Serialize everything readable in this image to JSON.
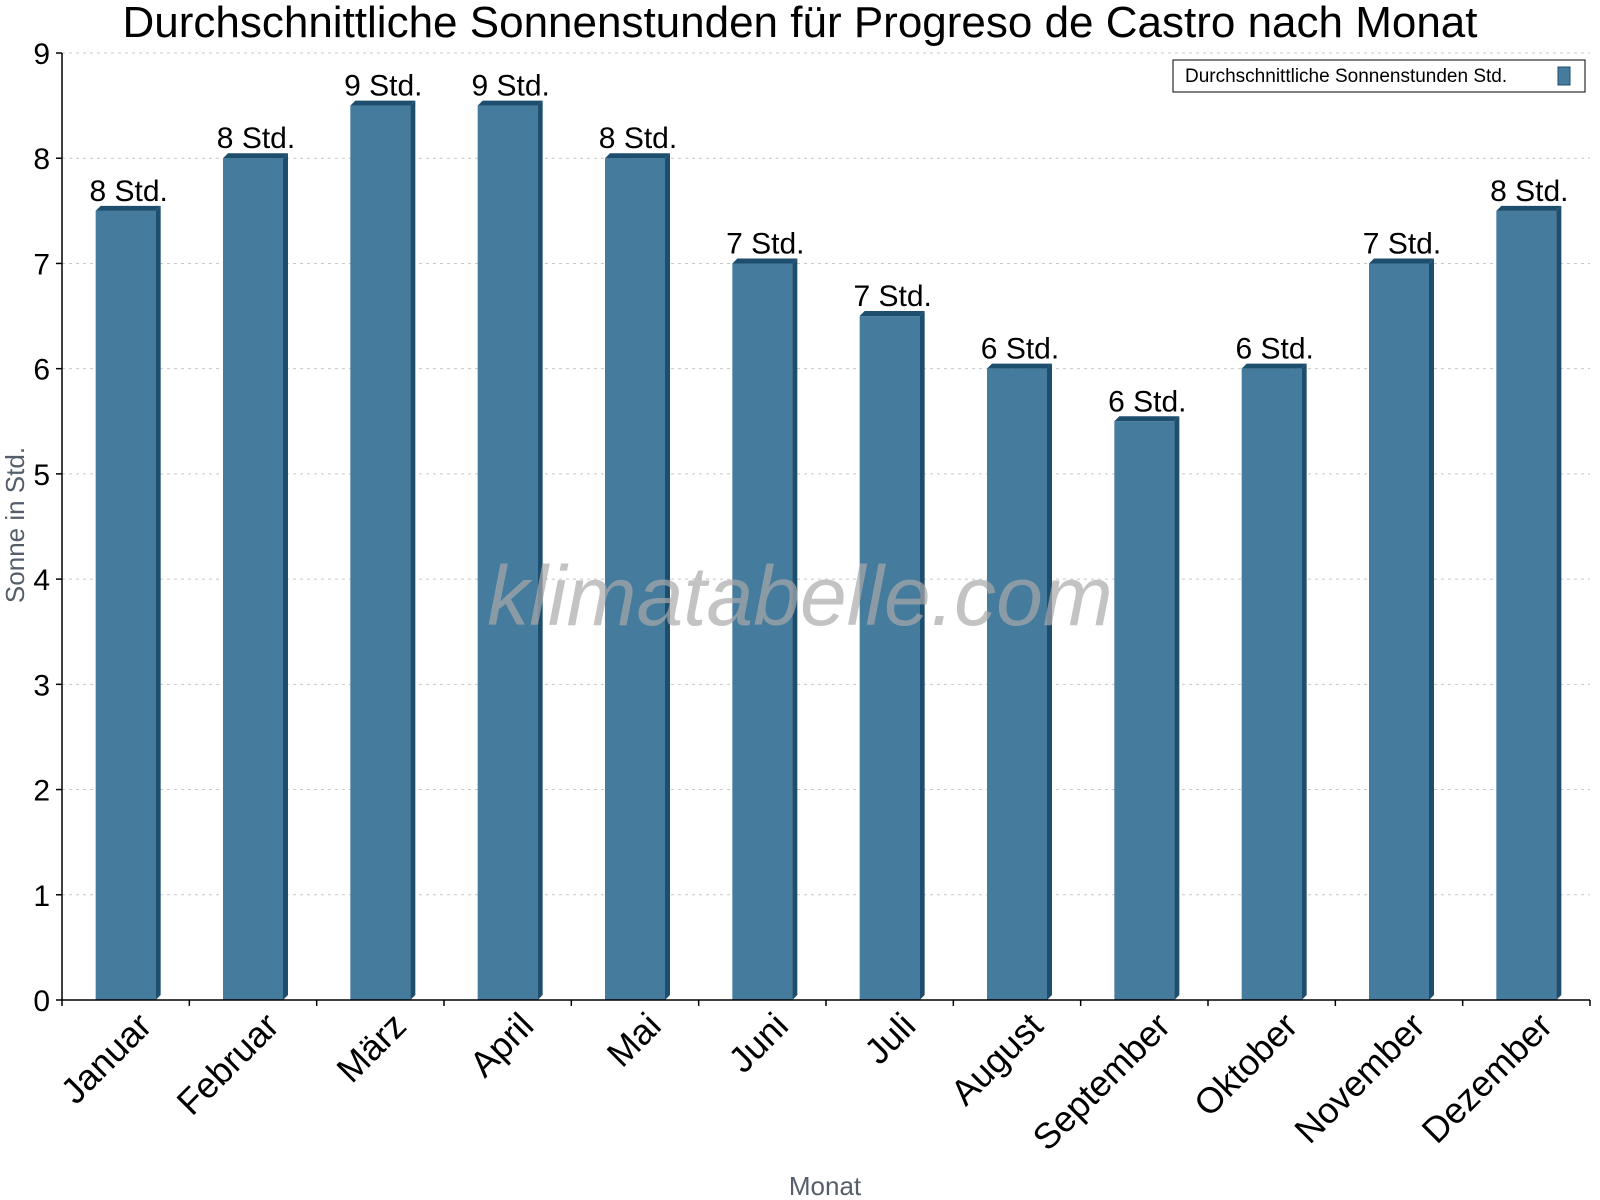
{
  "chart_data": {
    "type": "bar",
    "title": "Durchschnittliche Sonnenstunden für Progreso de Castro nach Monat",
    "xlabel": "Monat",
    "ylabel": "Sonne in Std.",
    "ylim": [
      0,
      9
    ],
    "y_ticks": [
      "0",
      "1",
      "2",
      "3",
      "4",
      "5",
      "6",
      "7",
      "8",
      "9"
    ],
    "grid": true,
    "legend_position": "top-right",
    "categories": [
      "Januar",
      "Februar",
      "März",
      "April",
      "Mai",
      "Juni",
      "Juli",
      "August",
      "September",
      "Oktober",
      "November",
      "Dezember"
    ],
    "series": [
      {
        "name": "Durchschnittliche Sonnenstunden Std.",
        "values": [
          7.5,
          8.0,
          8.5,
          8.5,
          8.0,
          7.0,
          6.5,
          6.0,
          5.5,
          6.0,
          7.0,
          7.5
        ],
        "data_labels": [
          "8 Std.",
          "8 Std.",
          "9 Std.",
          "9 Std.",
          "8 Std.",
          "7 Std.",
          "7 Std.",
          "6 Std.",
          "6 Std.",
          "6 Std.",
          "7 Std.",
          "8 Std."
        ],
        "color": "#457b9d",
        "side_color": "#1d4e6e"
      }
    ],
    "watermark": "klimatabelle.com"
  }
}
